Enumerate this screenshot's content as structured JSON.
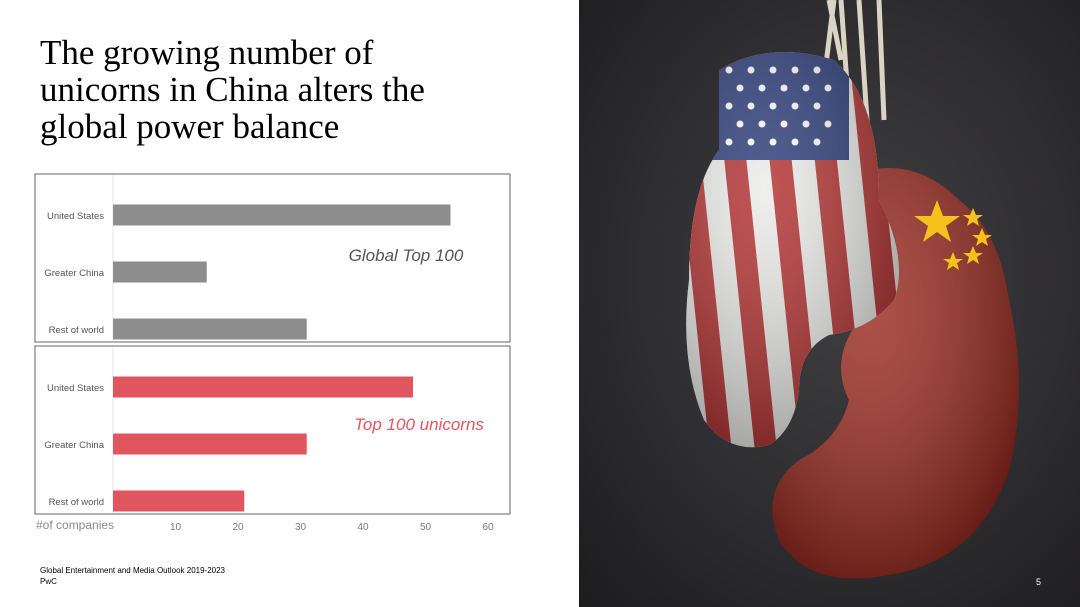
{
  "slide": {
    "title_lines": [
      "The growing number of",
      "unicorns in China alters the",
      "global power balance"
    ],
    "source": "Global Entertainment and Media Outlook 2019-2023",
    "company": "PwC",
    "page_number": "5"
  },
  "chart_data": {
    "type": "bar",
    "orientation": "horizontal",
    "categories": [
      "United States",
      "Greater China",
      "Rest of world"
    ],
    "series": [
      {
        "name": "Global Top 100",
        "values": [
          54,
          15,
          31
        ],
        "color": "#8d8d8d"
      },
      {
        "name": "Top 100 unicorns",
        "values": [
          48,
          31,
          21
        ],
        "color": "#e0565f"
      }
    ],
    "series_label_colors": [
      "#555555",
      "#e0565f"
    ],
    "xlabel": "#of companies",
    "xticks": [
      10,
      20,
      30,
      40,
      50,
      60
    ],
    "xlim": [
      0,
      60
    ],
    "grid": false
  },
  "image": {
    "description": "Two boxing gloves hanging from laces, one with the US flag and one with the Chinese flag",
    "flag_colors": {
      "us_red": "#b22f2f",
      "us_white": "#ececea",
      "us_blue": "#2a3a78",
      "china_red": "#9a2a1f",
      "china_star": "#f4c21a"
    }
  }
}
